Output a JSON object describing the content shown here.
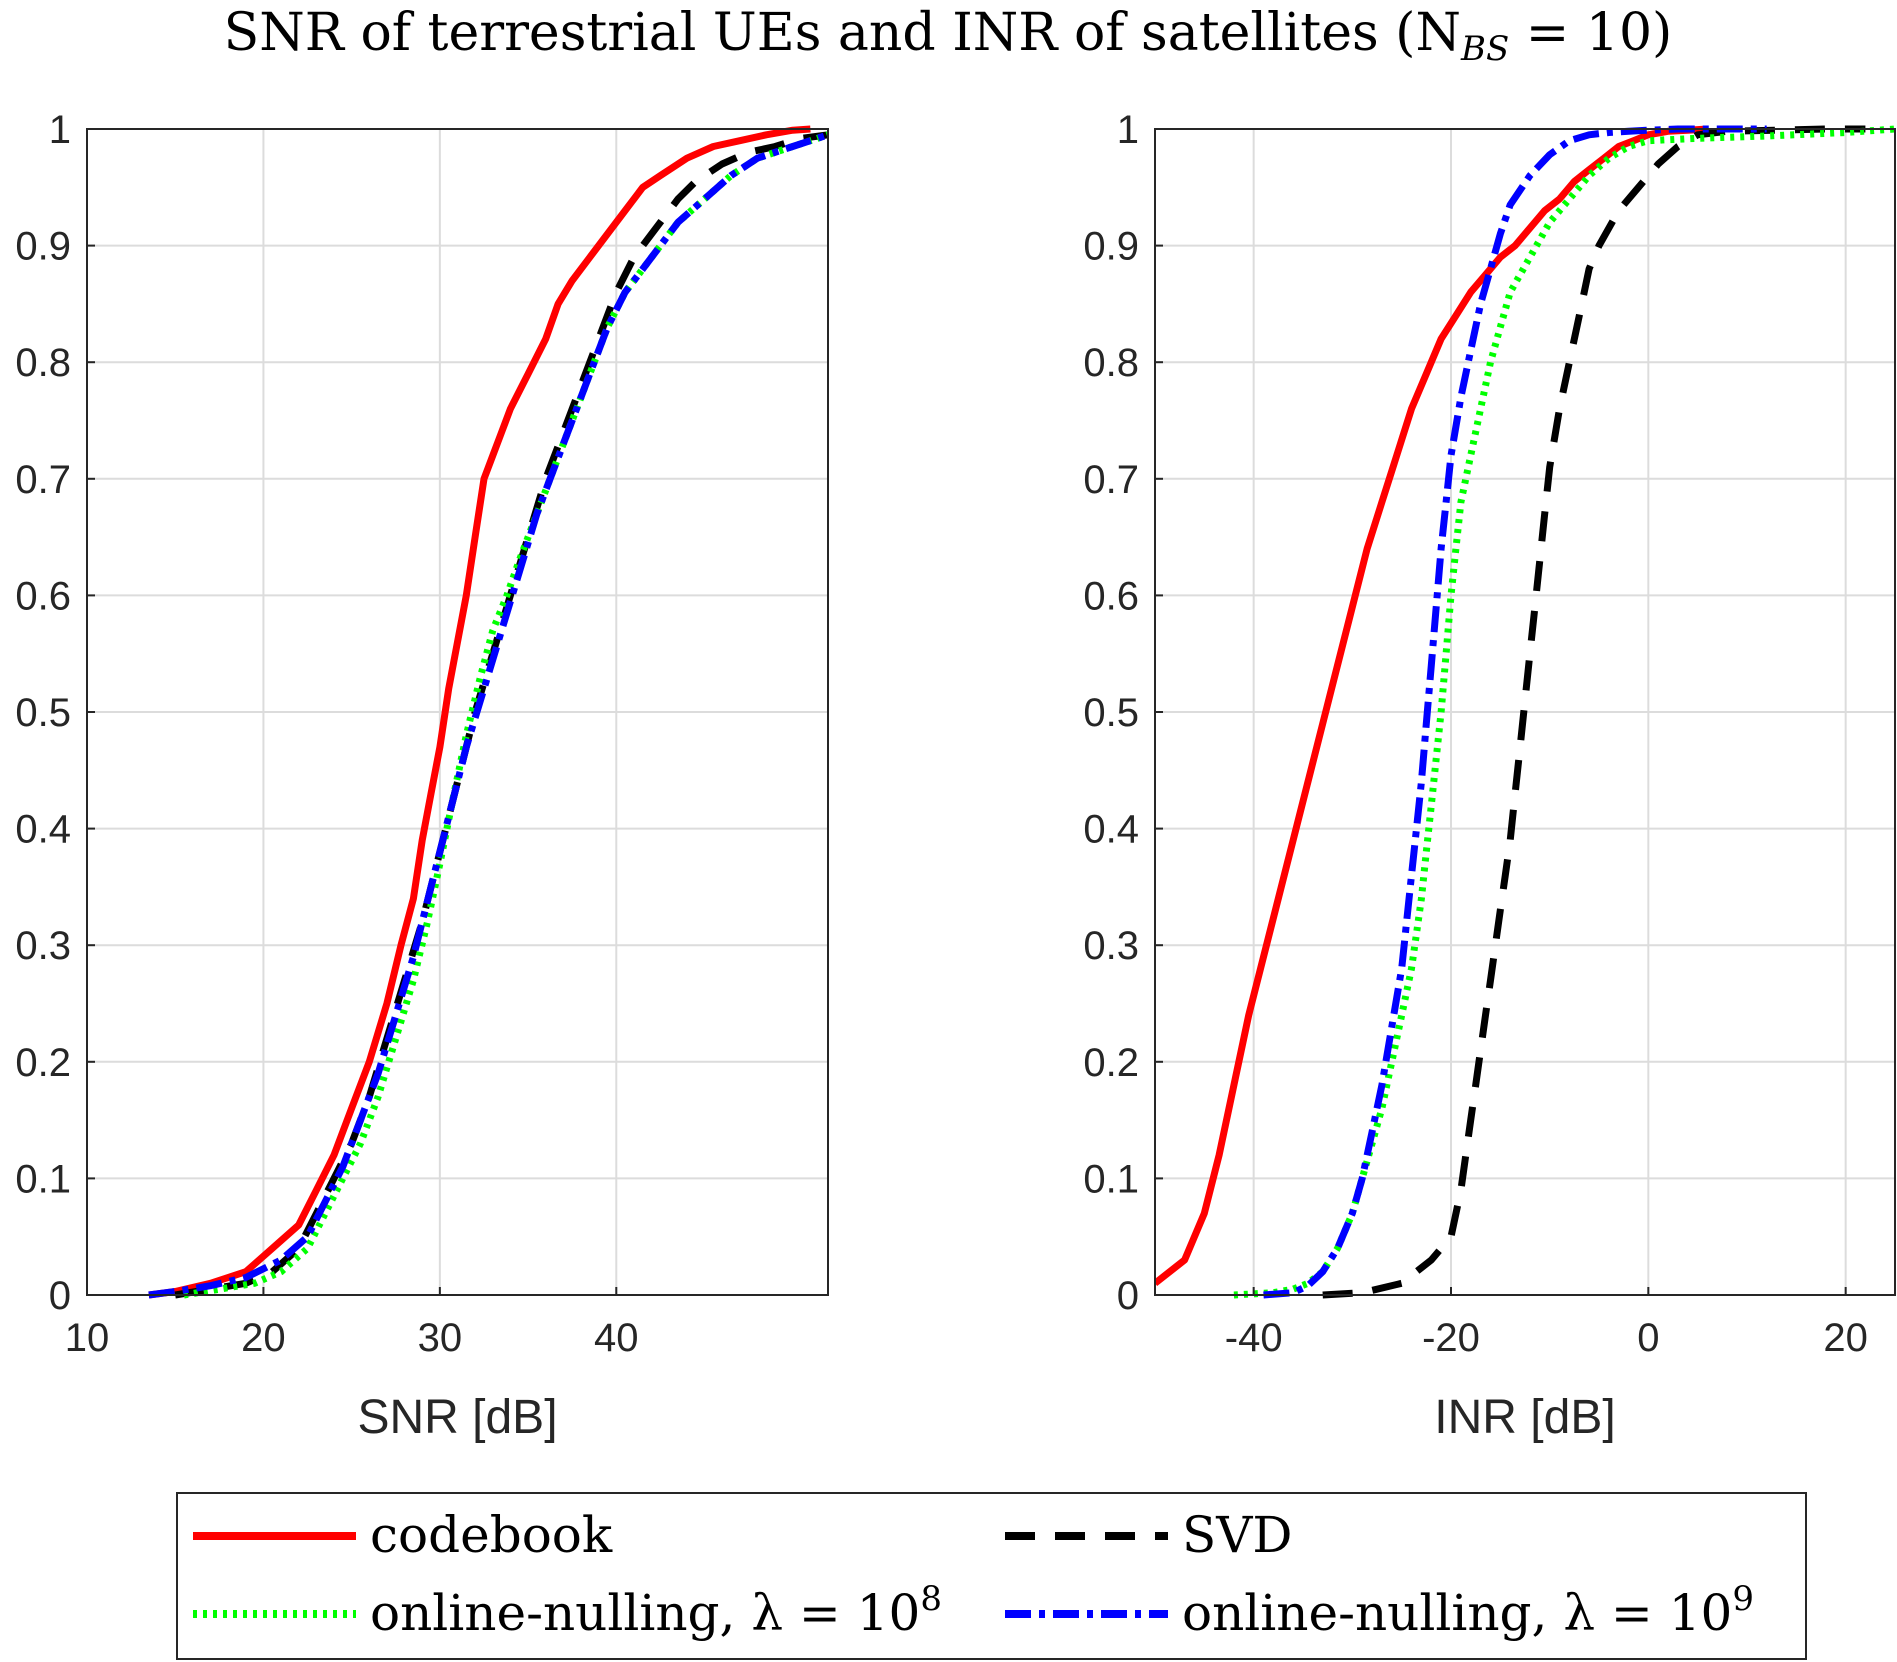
{
  "figure": {
    "title_main": "SNR of terrestrial UEs and INR of satellites (N",
    "title_sub": "BS",
    "title_tail": " = 10)"
  },
  "legend": {
    "entries": [
      {
        "label": "codebook",
        "color": "#ff0000",
        "style": "solid"
      },
      {
        "label": "SVD",
        "color": "#000000",
        "style": "dashed"
      },
      {
        "label_main": "online-nulling, λ = 10",
        "label_sup": "8",
        "color": "#00ff00",
        "style": "dotted"
      },
      {
        "label_main": "online-nulling, λ = 10",
        "label_sup": "9",
        "color": "#0000ff",
        "style": "dash-dot"
      }
    ]
  },
  "chart_data": [
    {
      "type": "line",
      "xlabel": "SNR [dB]",
      "ylabel": "",
      "xlim": [
        10,
        52
      ],
      "ylim": [
        0,
        1
      ],
      "xticks": [
        10,
        20,
        30,
        40
      ],
      "yticks": [
        0,
        0.1,
        0.2,
        0.3,
        0.4,
        0.5,
        0.6,
        0.7,
        0.8,
        0.9,
        1
      ],
      "ytick_labels": [
        "0",
        "0.1",
        "0.2",
        "0.3",
        "0.4",
        "0.5",
        "0.6",
        "0.7",
        "0.8",
        "0.9",
        "1"
      ],
      "grid": true,
      "series": [
        {
          "name": "codebook",
          "x": [
            13.5,
            15,
            17,
            19,
            20.5,
            22,
            23,
            24,
            25,
            26,
            27,
            27.8,
            28.5,
            29,
            29.5,
            30,
            30.5,
            31,
            31.5,
            32,
            32.5,
            33,
            33.5,
            34,
            35,
            36,
            36.7,
            37.5,
            38.5,
            39.5,
            40.5,
            41.5,
            42.5,
            44,
            45.5,
            47,
            48.5,
            50,
            51
          ],
          "y": [
            0,
            0.003,
            0.01,
            0.02,
            0.04,
            0.06,
            0.09,
            0.12,
            0.16,
            0.2,
            0.25,
            0.3,
            0.34,
            0.39,
            0.43,
            0.47,
            0.52,
            0.56,
            0.6,
            0.65,
            0.7,
            0.72,
            0.74,
            0.76,
            0.79,
            0.82,
            0.85,
            0.87,
            0.89,
            0.91,
            0.93,
            0.95,
            0.96,
            0.975,
            0.985,
            0.99,
            0.995,
            0.999,
            1
          ]
        },
        {
          "name": "SVD",
          "x": [
            15,
            17,
            19,
            20.5,
            22,
            23,
            24,
            25,
            26,
            27,
            28,
            29,
            30,
            31,
            32,
            33,
            34,
            35,
            36,
            37,
            38,
            39,
            40,
            41,
            42,
            42.5,
            43.5,
            44.5,
            46,
            47.5,
            49,
            50.5,
            52
          ],
          "y": [
            0,
            0.005,
            0.01,
            0.02,
            0.04,
            0.07,
            0.1,
            0.13,
            0.17,
            0.22,
            0.27,
            0.32,
            0.38,
            0.44,
            0.5,
            0.55,
            0.6,
            0.65,
            0.7,
            0.74,
            0.78,
            0.82,
            0.86,
            0.89,
            0.91,
            0.92,
            0.94,
            0.955,
            0.97,
            0.98,
            0.985,
            0.992,
            0.995
          ]
        },
        {
          "name": "online-nulling, λ = 10^8",
          "x": [
            15.5,
            17.5,
            19.5,
            21,
            22.5,
            23.5,
            24.5,
            25.5,
            26.5,
            27.5,
            28.5,
            29.3,
            30,
            30.8,
            31.5,
            32.3,
            33,
            33.8,
            34.5,
            35.5,
            36.5,
            37.5,
            38.5,
            39.5,
            40.5,
            41.5,
            42.5,
            43.5,
            45,
            46.5,
            48,
            50,
            52
          ],
          "y": [
            0,
            0.005,
            0.01,
            0.02,
            0.04,
            0.07,
            0.1,
            0.13,
            0.17,
            0.22,
            0.27,
            0.32,
            0.37,
            0.43,
            0.48,
            0.53,
            0.57,
            0.6,
            0.63,
            0.67,
            0.71,
            0.75,
            0.79,
            0.83,
            0.86,
            0.88,
            0.9,
            0.92,
            0.94,
            0.96,
            0.975,
            0.985,
            0.995
          ]
        },
        {
          "name": "online-nulling, λ = 10^9",
          "x": [
            13.5,
            15,
            17,
            19,
            21,
            22.5,
            23.5,
            24.5,
            25.5,
            26.5,
            27.5,
            28.5,
            29.5,
            30.5,
            31.5,
            32.5,
            33.5,
            34.5,
            35.5,
            36.5,
            37.5,
            38.5,
            39.5,
            40.5,
            41.5,
            42.5,
            43.5,
            45,
            46.5,
            48,
            50,
            52
          ],
          "y": [
            0,
            0.003,
            0.008,
            0.015,
            0.03,
            0.05,
            0.08,
            0.11,
            0.15,
            0.19,
            0.24,
            0.29,
            0.35,
            0.41,
            0.47,
            0.52,
            0.57,
            0.62,
            0.67,
            0.71,
            0.75,
            0.79,
            0.83,
            0.86,
            0.88,
            0.9,
            0.92,
            0.94,
            0.96,
            0.975,
            0.985,
            0.995
          ]
        }
      ]
    },
    {
      "type": "line",
      "xlabel": "INR [dB]",
      "ylabel": "",
      "xlim": [
        -50,
        25
      ],
      "ylim": [
        0,
        1
      ],
      "xticks": [
        -40,
        -20,
        0,
        20
      ],
      "yticks": [
        0,
        0.1,
        0.2,
        0.3,
        0.4,
        0.5,
        0.6,
        0.7,
        0.8,
        0.9,
        1
      ],
      "ytick_labels": [
        "0",
        "0.1",
        "0.2",
        "0.3",
        "0.4",
        "0.5",
        "0.6",
        "0.7",
        "0.8",
        "0.9",
        "1"
      ],
      "grid": true,
      "series": [
        {
          "name": "codebook",
          "x": [
            -50,
            -47,
            -45,
            -43.5,
            -42,
            -40.5,
            -39,
            -37.5,
            -36,
            -34.5,
            -33,
            -31.5,
            -30,
            -28.5,
            -27,
            -25.5,
            -24,
            -22.5,
            -21,
            -19.5,
            -18,
            -16.5,
            -15,
            -13.5,
            -12,
            -10.5,
            -9,
            -7.5,
            -6,
            -4.5,
            -3,
            -1.5,
            0,
            2,
            4,
            6
          ],
          "y": [
            0.01,
            0.03,
            0.07,
            0.12,
            0.18,
            0.24,
            0.29,
            0.34,
            0.39,
            0.44,
            0.49,
            0.54,
            0.59,
            0.64,
            0.68,
            0.72,
            0.76,
            0.79,
            0.82,
            0.84,
            0.86,
            0.875,
            0.89,
            0.9,
            0.915,
            0.93,
            0.94,
            0.955,
            0.965,
            0.975,
            0.985,
            0.99,
            0.995,
            0.998,
            0.999,
            1
          ]
        },
        {
          "name": "SVD",
          "x": [
            -33,
            -29,
            -25,
            -22,
            -20,
            -19,
            -18.5,
            -18,
            -17.5,
            -17,
            -16.5,
            -16,
            -15.5,
            -15,
            -14.5,
            -14,
            -13.5,
            -13,
            -12.5,
            -12,
            -11.5,
            -11,
            -10.5,
            -10,
            -9,
            -8,
            -7,
            -6,
            -5,
            -3,
            -1,
            1,
            3,
            5,
            8,
            13,
            18,
            22
          ],
          "y": [
            0,
            0.002,
            0.01,
            0.03,
            0.05,
            0.09,
            0.12,
            0.15,
            0.18,
            0.21,
            0.24,
            0.27,
            0.3,
            0.33,
            0.36,
            0.39,
            0.43,
            0.47,
            0.51,
            0.55,
            0.59,
            0.63,
            0.67,
            0.71,
            0.76,
            0.8,
            0.84,
            0.88,
            0.9,
            0.93,
            0.95,
            0.97,
            0.985,
            0.995,
            0.998,
            0.999,
            1,
            1
          ]
        },
        {
          "name": "online-nulling, λ = 10^8",
          "x": [
            -42,
            -38,
            -36,
            -34.5,
            -33,
            -31.5,
            -30,
            -29,
            -28,
            -27,
            -26,
            -25,
            -24,
            -23.5,
            -23,
            -22.5,
            -22,
            -21.5,
            -21,
            -20.5,
            -20,
            -19.5,
            -19,
            -18,
            -17,
            -16,
            -15,
            -14,
            -12,
            -10,
            -8,
            -6,
            -4,
            -2,
            0,
            5,
            12,
            20,
            25
          ],
          "y": [
            0,
            0.002,
            0.005,
            0.01,
            0.02,
            0.04,
            0.07,
            0.1,
            0.13,
            0.16,
            0.2,
            0.24,
            0.28,
            0.31,
            0.34,
            0.38,
            0.42,
            0.46,
            0.5,
            0.55,
            0.6,
            0.64,
            0.68,
            0.72,
            0.76,
            0.8,
            0.83,
            0.86,
            0.89,
            0.92,
            0.94,
            0.96,
            0.975,
            0.985,
            0.99,
            0.992,
            0.994,
            0.997,
            1
          ]
        },
        {
          "name": "online-nulling, λ = 10^9",
          "x": [
            -39,
            -36,
            -34.5,
            -33,
            -31.5,
            -30,
            -29,
            -28,
            -27,
            -26,
            -25,
            -24.5,
            -24,
            -23.5,
            -23,
            -22.5,
            -22,
            -21.5,
            -21,
            -20.5,
            -20,
            -19,
            -18,
            -17,
            -16,
            -15,
            -14,
            -12,
            -10,
            -8,
            -6,
            -4,
            -2,
            0,
            3,
            7,
            12
          ],
          "y": [
            0,
            0.002,
            0.008,
            0.02,
            0.04,
            0.07,
            0.1,
            0.14,
            0.18,
            0.23,
            0.28,
            0.32,
            0.36,
            0.4,
            0.44,
            0.49,
            0.54,
            0.59,
            0.64,
            0.68,
            0.72,
            0.77,
            0.81,
            0.85,
            0.88,
            0.91,
            0.935,
            0.96,
            0.978,
            0.99,
            0.995,
            0.997,
            0.998,
            0.999,
            1,
            1,
            1
          ]
        }
      ]
    }
  ]
}
